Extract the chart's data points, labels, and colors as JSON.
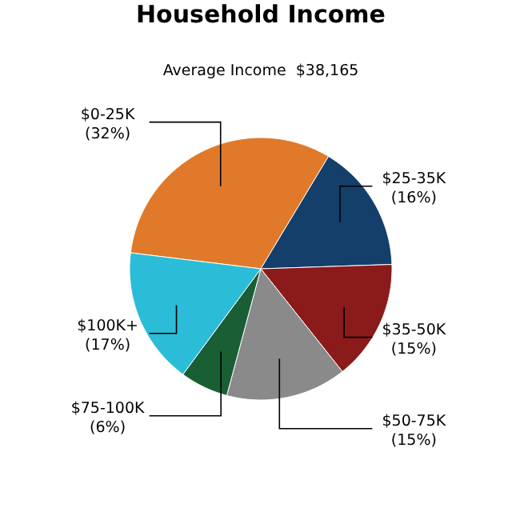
{
  "chart_data": {
    "type": "pie",
    "title": "Household Income",
    "subtitle": "Average Income  $38,165",
    "categories": [
      "$0-25K",
      "$25-35K",
      "$35-50K",
      "$50-75K",
      "$75-100K",
      "$100K+"
    ],
    "values": [
      32,
      16,
      15,
      15,
      6,
      17
    ],
    "value_labels": [
      "(32%)",
      "(16%)",
      "(15%)",
      "(15%)",
      "(6%)",
      "(17%)"
    ],
    "colors": [
      "#e07a2a",
      "#143f6b",
      "#8b1a1a",
      "#8a8a8a",
      "#1a5e35",
      "#2bbcd8"
    ]
  }
}
